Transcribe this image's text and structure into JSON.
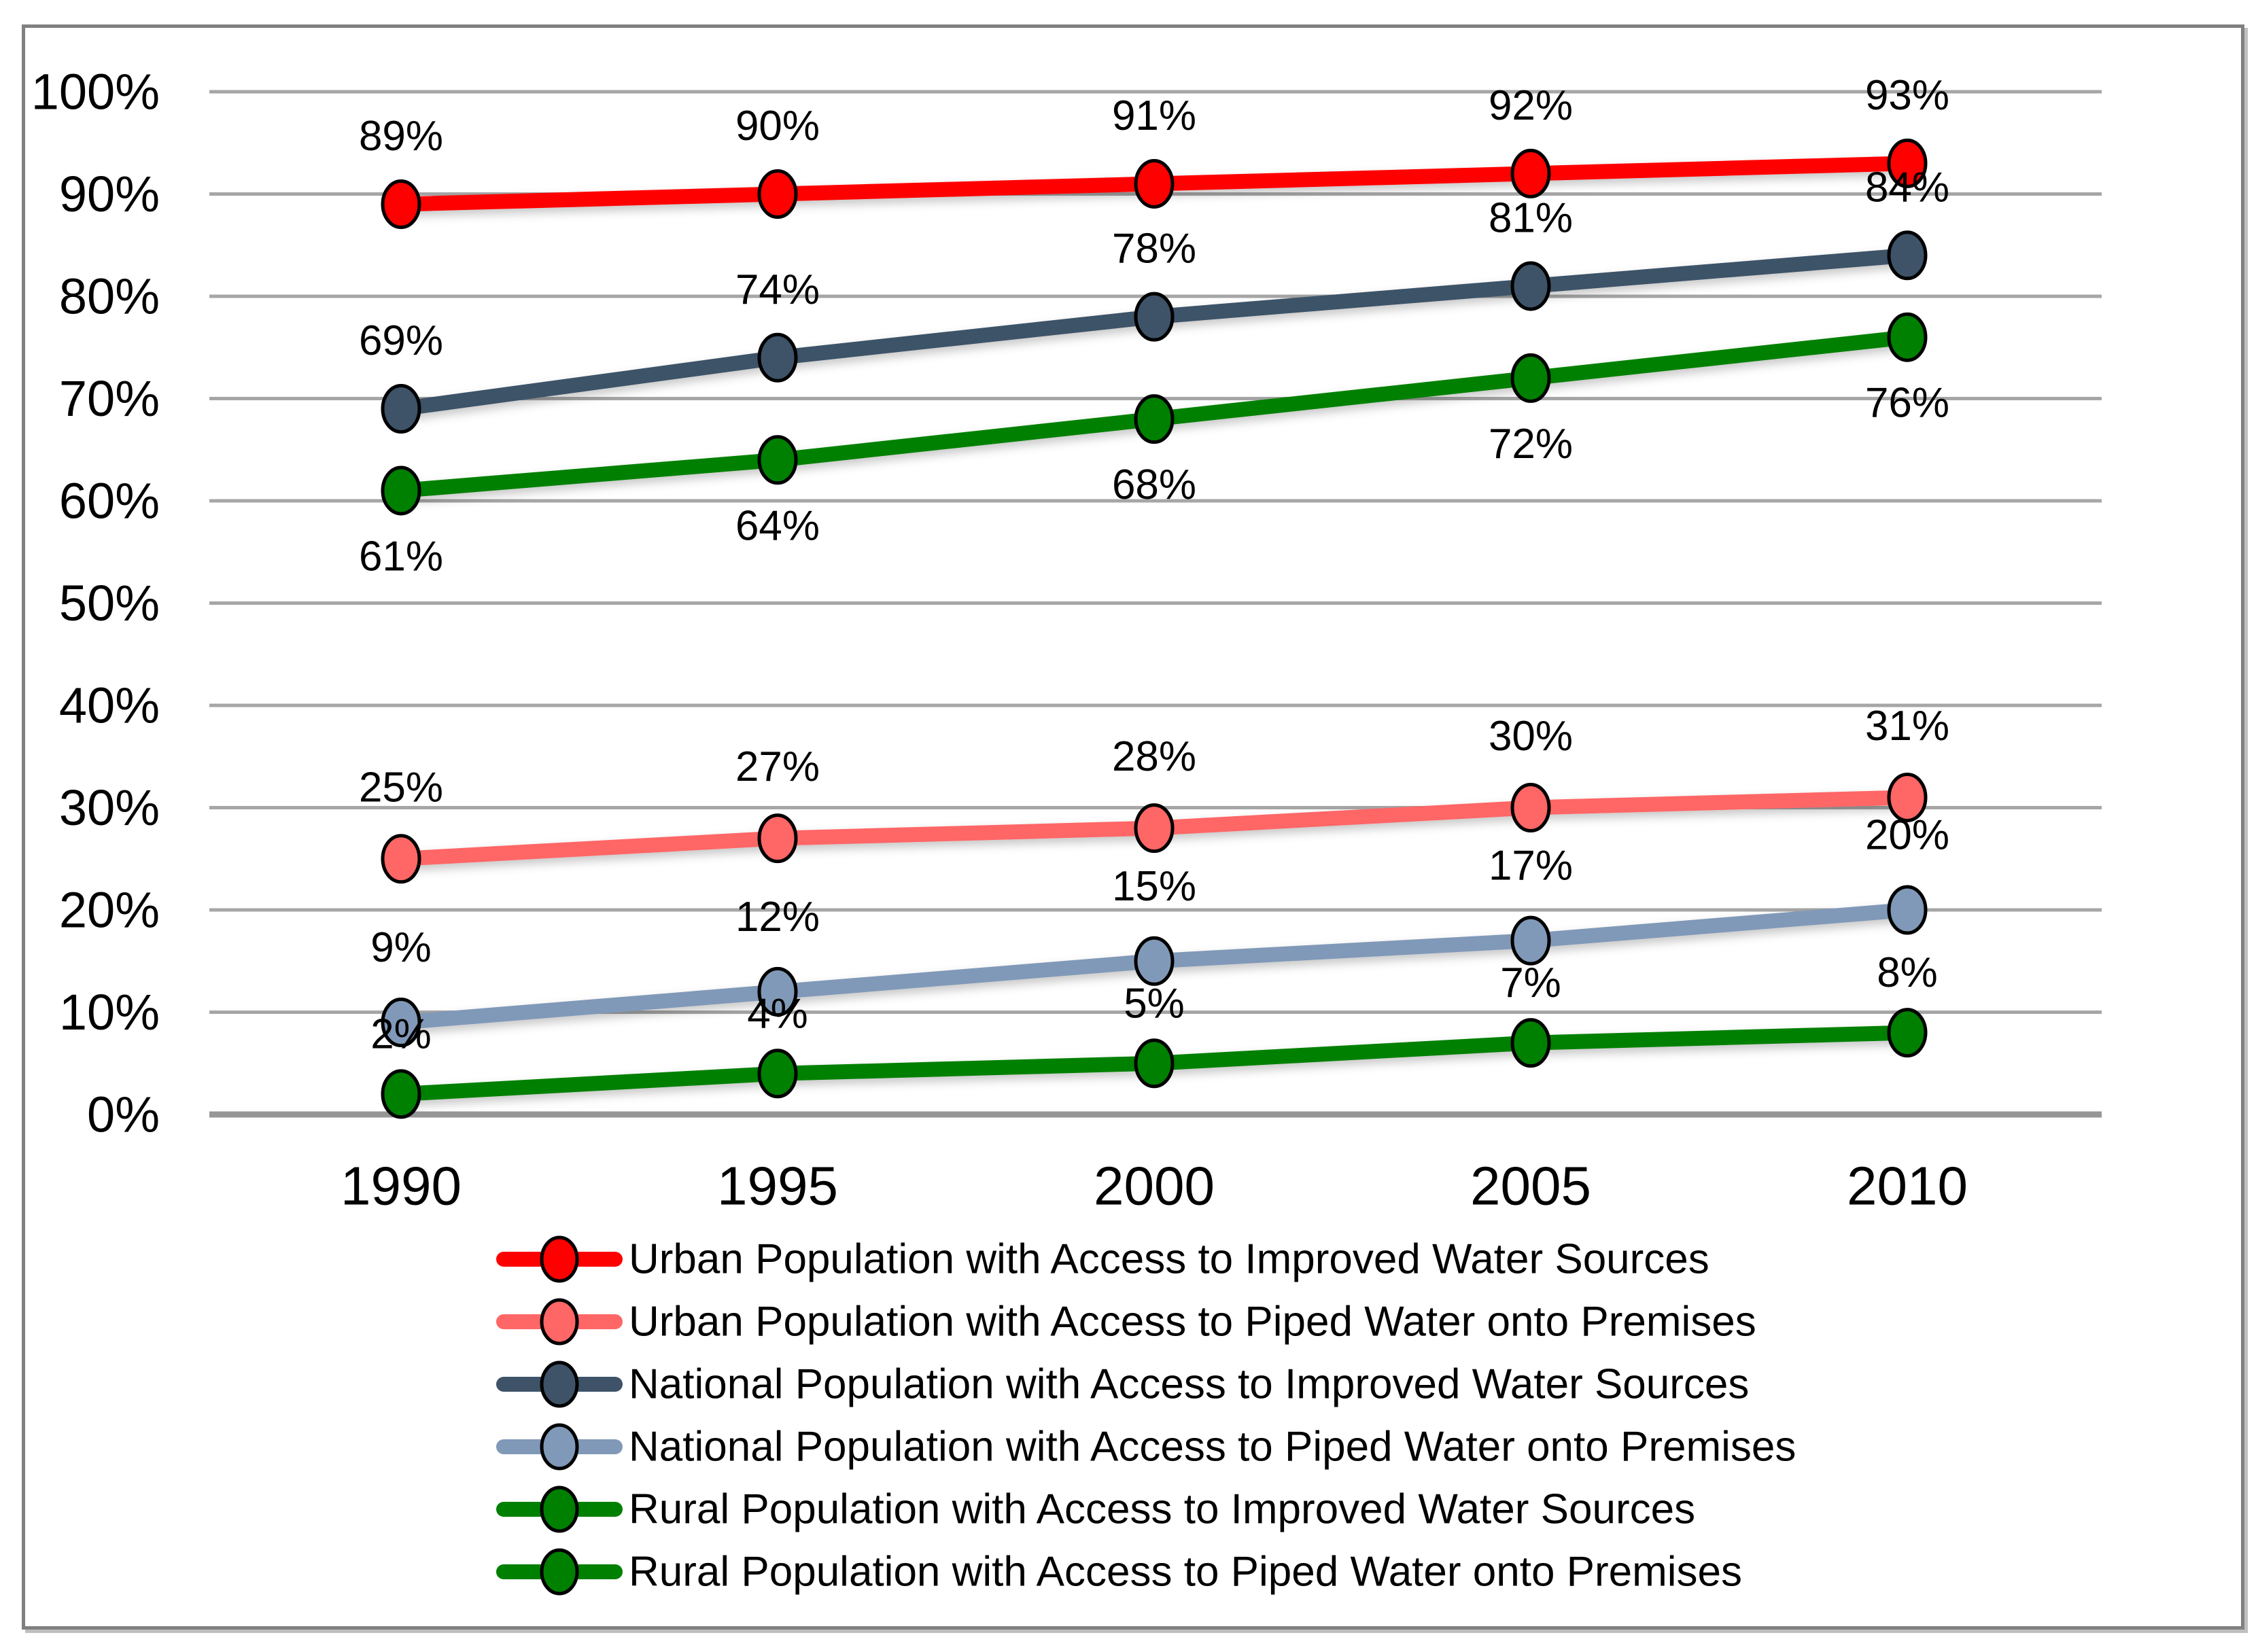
{
  "chart_data": {
    "type": "line",
    "title": "",
    "xlabel": "",
    "ylabel": "",
    "x_categories": [
      "1990",
      "1995",
      "2000",
      "2005",
      "2010"
    ],
    "y_ticks": [
      "0%",
      "10%",
      "20%",
      "30%",
      "40%",
      "50%",
      "60%",
      "70%",
      "80%",
      "90%",
      "100%"
    ],
    "ylim": [
      0,
      100
    ],
    "grid": true,
    "legend_position": "bottom-left",
    "value_suffix": "%",
    "series": [
      {
        "name": "Urban Population with Access to Improved Water Sources",
        "color": "#FF0000",
        "values": [
          89,
          90,
          91,
          92,
          93
        ],
        "data_labels": [
          "89%",
          "90%",
          "91%",
          "92%",
          "93%"
        ],
        "label_offset": -100
      },
      {
        "name": "Urban Population with Access to Piped Water onto Premises",
        "color": "#FF6666",
        "values": [
          25,
          27,
          28,
          30,
          31
        ],
        "data_labels": [
          "25%",
          "27%",
          "28%",
          "30%",
          "31%"
        ],
        "label_offset": -105
      },
      {
        "name": "National Population with Access to Improved Water Sources",
        "color": "#3E5368",
        "values": [
          69,
          74,
          78,
          81,
          84
        ],
        "data_labels": [
          "69%",
          "74%",
          "78%",
          "81%",
          "84%"
        ],
        "label_offset": -100
      },
      {
        "name": "National Population with Access to Piped Water onto Premises",
        "color": "#8199B8",
        "values": [
          9,
          12,
          15,
          17,
          20
        ],
        "data_labels": [
          "9%",
          "12%",
          "15%",
          "17%",
          "20%"
        ],
        "label_offset": -110
      },
      {
        "name": "Rural Population with Access to Improved Water Sources",
        "color": "#008000",
        "values": [
          61,
          64,
          68,
          72,
          76
        ],
        "data_labels": [
          "61%",
          "64%",
          "68%",
          "72%",
          "76%"
        ],
        "label_offset": 97
      },
      {
        "name": "Rural Population with Access to Piped Water onto Premises",
        "color": "#008000",
        "values": [
          2,
          4,
          5,
          7,
          8
        ],
        "data_labels": [
          "2%",
          "4%",
          "5%",
          "7%",
          "8%"
        ],
        "label_offset": -88
      }
    ],
    "colors": {
      "gridline": "#A6A6A6",
      "axis_line": "#969696",
      "frame_border": "#808080",
      "data_label": "#000000",
      "marker_outline": "#000000"
    }
  }
}
